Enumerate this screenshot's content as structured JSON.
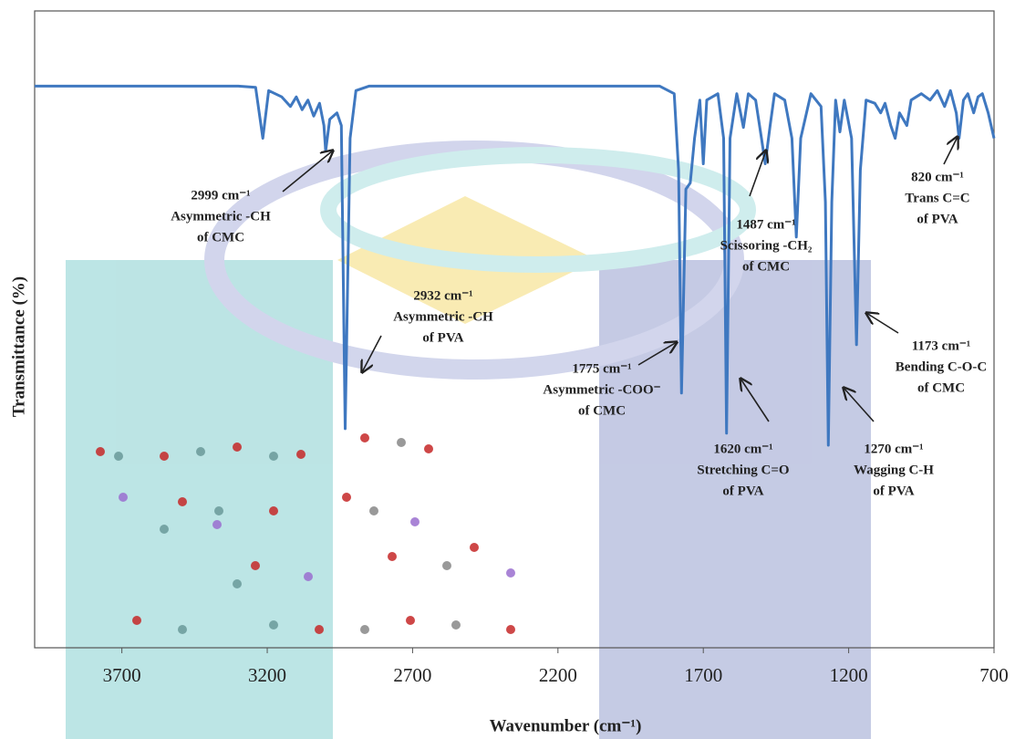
{
  "chart_data": {
    "type": "line",
    "xlabel": "Wavenumber (cm⁻¹)",
    "ylabel": "Transmittance (%)",
    "color": "#3f78c0",
    "xlim": [
      4000,
      700
    ],
    "ylim": [
      0,
      100
    ],
    "xticks": [
      3700,
      3200,
      2700,
      2200,
      1700,
      1200,
      700
    ],
    "x": [
      4000,
      3300,
      3240,
      3215,
      3195,
      3150,
      3120,
      3100,
      3080,
      3060,
      3040,
      3020,
      3005,
      2999,
      2985,
      2960,
      2945,
      2932,
      2915,
      2895,
      2850,
      1850,
      1800,
      1785,
      1775,
      1760,
      1745,
      1730,
      1712,
      1700,
      1688,
      1650,
      1630,
      1620,
      1608,
      1585,
      1562,
      1545,
      1520,
      1500,
      1487,
      1470,
      1455,
      1420,
      1395,
      1380,
      1365,
      1330,
      1295,
      1280,
      1270,
      1258,
      1245,
      1230,
      1215,
      1190,
      1173,
      1160,
      1140,
      1110,
      1090,
      1075,
      1055,
      1040,
      1025,
      1000,
      985,
      950,
      920,
      895,
      870,
      850,
      830,
      820,
      805,
      790,
      770,
      755,
      740,
      720,
      700
    ],
    "values": [
      88.2,
      88.2,
      88,
      80,
      87.5,
      86.5,
      85,
      86.5,
      84.5,
      86,
      83.5,
      85.5,
      82,
      78,
      83,
      84,
      82,
      34.4,
      80,
      87.5,
      88.2,
      88.2,
      87,
      75,
      40,
      72,
      73,
      80,
      86,
      76,
      86,
      87,
      80,
      33.7,
      80,
      87,
      81.7,
      87,
      86,
      80,
      76,
      82,
      87,
      86,
      80,
      64.5,
      80,
      87,
      85,
      70,
      31.8,
      70,
      86,
      81,
      86,
      80,
      47.6,
      75,
      86,
      85.5,
      84,
      85.5,
      82,
      80,
      84,
      82,
      86,
      87,
      86,
      87.5,
      85,
      87.5,
      84,
      80,
      86,
      87,
      84,
      86.5,
      87,
      84,
      80
    ],
    "annotations": [
      {
        "text": [
          "2999 cm⁻¹",
          "Asymmetric -CH",
          "of CMC"
        ]
      },
      {
        "text": [
          "2932 cm⁻¹",
          "Asymmetric -CH",
          "of PVA"
        ]
      },
      {
        "text": [
          "1775 cm⁻¹",
          "Asymmetric -COO⁻",
          "of CMC"
        ]
      },
      {
        "text": [
          "1620 cm⁻¹",
          "Stretching C=O",
          "of PVA"
        ]
      },
      {
        "text": [
          "1487 cm⁻¹",
          "Scissoring -CH₂",
          "of CMC"
        ]
      },
      {
        "text": [
          "1270 cm⁻¹",
          "Wagging C-H",
          "of PVA"
        ]
      },
      {
        "text": [
          "1173 cm⁻¹",
          "Bending C-O-C",
          "of CMC"
        ]
      },
      {
        "text": [
          "820 cm⁻¹",
          "Trans C=C",
          "of PVA"
        ]
      }
    ]
  }
}
